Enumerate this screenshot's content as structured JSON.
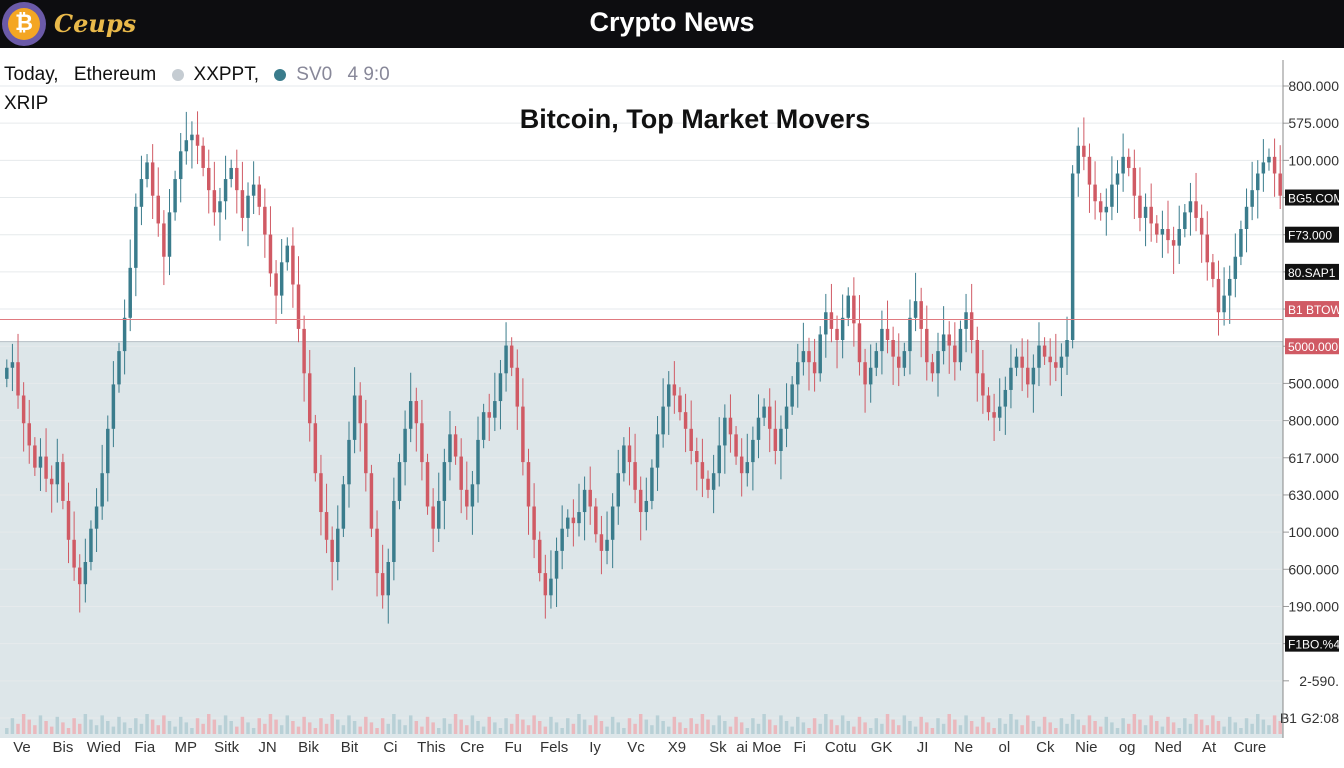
{
  "header": {
    "brand": "Ceups",
    "title": "Crypto News"
  },
  "tickers": {
    "today": "Today,",
    "ethereum": "Ethereum",
    "xxppt": "XXPPT,",
    "svo": "SV0",
    "value": "4 9:0",
    "xrip": "XRIP"
  },
  "colors": {
    "up": "#3a7c8c",
    "down": "#d05a64",
    "header_bg": "#0d0d10",
    "brand": "#e9b94a",
    "shaded": "#dde6e9"
  },
  "chart_data": {
    "type": "candlestick",
    "title": "Bitcoin, Top Market Movers",
    "ylim": [
      0,
      100
    ],
    "y_tick_labels": [
      "800.000",
      "575.000",
      "100.000",
      "BG5.COM",
      "F73.000",
      "80.SAP1",
      "B1 BTOW",
      "5000.000",
      "500.000",
      "800.000",
      "617.000",
      "630.000",
      "100.000",
      "600.000",
      "190.000",
      "F1BO.%4",
      "2-590.",
      "B1 G2:08"
    ],
    "x_tick_labels": [
      "Ve",
      "Bis",
      "Wied",
      "Fia",
      "MP",
      "Sitk",
      "JN",
      "Bik",
      "Bit",
      "Ci",
      "This",
      "Cre",
      "Fu",
      "Fels",
      "Iy",
      "Vc",
      "X9",
      "Sk",
      "ai Moe",
      "Fi",
      "Cotu",
      "GK",
      "JI",
      "Ne",
      "ol",
      "Ck",
      "Nie",
      "og",
      "Ned",
      "At",
      "Cure"
    ],
    "horizontal_line": 63.7,
    "shade_from": 59.7,
    "closes": [
      55,
      56,
      50,
      45,
      41,
      37,
      39,
      35,
      34,
      38,
      31,
      24,
      19,
      16,
      20,
      26,
      30,
      36,
      44,
      52,
      58,
      64,
      73,
      84,
      89,
      92,
      86,
      81,
      75,
      83,
      89,
      94,
      96,
      97,
      95,
      91,
      87,
      83,
      85,
      89,
      91,
      87,
      82,
      86,
      88,
      84,
      79,
      72,
      68,
      74,
      77,
      70,
      62,
      54,
      45,
      36,
      29,
      24,
      20,
      26,
      34,
      42,
      50,
      45,
      36,
      26,
      18,
      14,
      20,
      31,
      38,
      44,
      49,
      45,
      38,
      30,
      26,
      31,
      38,
      43,
      39,
      33,
      30,
      34,
      42,
      47,
      46,
      49,
      54,
      59,
      55,
      48,
      38,
      30,
      24,
      18,
      14,
      17,
      22,
      26,
      28,
      27,
      29,
      33,
      30,
      25,
      22,
      24,
      30,
      36,
      41,
      38,
      33,
      29,
      31,
      37,
      43,
      48,
      52,
      50,
      47,
      44,
      40,
      38,
      35,
      33,
      36,
      41,
      46,
      43,
      39,
      36,
      38,
      42,
      46,
      48,
      44,
      40,
      44,
      48,
      52,
      56,
      58,
      56,
      54,
      61,
      65,
      62,
      60,
      64,
      68,
      63,
      56,
      52,
      55,
      58,
      62,
      60,
      57,
      55,
      58,
      64,
      67,
      62,
      56,
      54,
      58,
      61,
      59,
      56,
      62,
      65,
      60,
      54,
      50,
      47,
      46,
      48,
      51,
      55,
      57,
      55,
      52,
      55,
      59,
      57,
      56,
      55,
      57,
      60,
      90,
      95,
      93,
      88,
      85,
      83,
      84,
      88,
      90,
      93,
      91,
      86,
      82,
      84,
      81,
      79,
      80,
      78,
      77,
      80,
      83,
      85,
      82,
      79,
      74,
      71,
      65,
      68,
      71,
      75,
      80,
      84,
      87,
      90,
      92,
      93,
      90,
      86
    ]
  }
}
